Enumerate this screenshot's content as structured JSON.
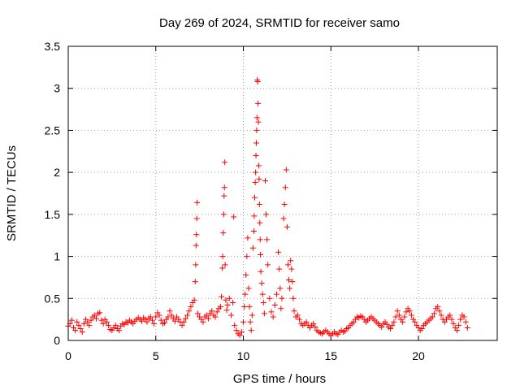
{
  "chart_data": {
    "type": "scatter",
    "title": "Day 269 of 2024, SRMTID for receiver samo",
    "xlabel": "GPS time / hours",
    "ylabel": "SRMTID / TECUs",
    "xlim": [
      0,
      24.5
    ],
    "ylim": [
      0,
      3.5
    ],
    "grid": true,
    "marker": "plus",
    "color": "#ff0000",
    "x_ticks": [
      0,
      5,
      10,
      15,
      20
    ],
    "x_tick_labels": [
      "0",
      "5",
      "10",
      "15",
      "20"
    ],
    "y_ticks": [
      0,
      0.5,
      1,
      1.5,
      2,
      2.5,
      3,
      3.5
    ],
    "y_tick_labels": [
      "0",
      "0.5",
      "1",
      "1.5",
      "2",
      "2.5",
      "3",
      "3.5"
    ],
    "series": [
      {
        "name": "SRMTID",
        "points": [
          [
            0.0,
            0.17
          ],
          [
            0.1,
            0.2
          ],
          [
            0.2,
            0.24
          ],
          [
            0.3,
            0.15
          ],
          [
            0.4,
            0.12
          ],
          [
            0.5,
            0.22
          ],
          [
            0.6,
            0.18
          ],
          [
            0.7,
            0.14
          ],
          [
            0.8,
            0.1
          ],
          [
            0.9,
            0.2
          ],
          [
            1.0,
            0.25
          ],
          [
            1.1,
            0.22
          ],
          [
            1.2,
            0.18
          ],
          [
            1.3,
            0.24
          ],
          [
            1.4,
            0.28
          ],
          [
            1.5,
            0.3
          ],
          [
            1.6,
            0.26
          ],
          [
            1.7,
            0.32
          ],
          [
            1.8,
            0.33
          ],
          [
            1.9,
            0.24
          ],
          [
            2.0,
            0.2
          ],
          [
            2.1,
            0.25
          ],
          [
            2.2,
            0.22
          ],
          [
            2.3,
            0.18
          ],
          [
            2.4,
            0.13
          ],
          [
            2.5,
            0.12
          ],
          [
            2.6,
            0.15
          ],
          [
            2.7,
            0.18
          ],
          [
            2.8,
            0.14
          ],
          [
            2.9,
            0.12
          ],
          [
            3.0,
            0.17
          ],
          [
            3.1,
            0.2
          ],
          [
            3.2,
            0.19
          ],
          [
            3.3,
            0.22
          ],
          [
            3.4,
            0.21
          ],
          [
            3.5,
            0.24
          ],
          [
            3.6,
            0.22
          ],
          [
            3.7,
            0.2
          ],
          [
            3.8,
            0.23
          ],
          [
            3.9,
            0.25
          ],
          [
            4.0,
            0.27
          ],
          [
            4.1,
            0.25
          ],
          [
            4.2,
            0.23
          ],
          [
            4.3,
            0.27
          ],
          [
            4.4,
            0.25
          ],
          [
            4.5,
            0.22
          ],
          [
            4.6,
            0.26
          ],
          [
            4.7,
            0.28
          ],
          [
            4.8,
            0.24
          ],
          [
            4.9,
            0.2
          ],
          [
            5.0,
            0.28
          ],
          [
            5.1,
            0.33
          ],
          [
            5.2,
            0.3
          ],
          [
            5.3,
            0.24
          ],
          [
            5.4,
            0.2
          ],
          [
            5.5,
            0.21
          ],
          [
            5.6,
            0.25
          ],
          [
            5.7,
            0.28
          ],
          [
            5.8,
            0.35
          ],
          [
            5.9,
            0.3
          ],
          [
            6.0,
            0.26
          ],
          [
            6.1,
            0.23
          ],
          [
            6.2,
            0.28
          ],
          [
            6.3,
            0.25
          ],
          [
            6.4,
            0.22
          ],
          [
            6.5,
            0.18
          ],
          [
            6.6,
            0.22
          ],
          [
            6.7,
            0.26
          ],
          [
            6.8,
            0.3
          ],
          [
            6.9,
            0.35
          ],
          [
            7.0,
            0.4
          ],
          [
            7.1,
            0.45
          ],
          [
            7.2,
            0.48
          ],
          [
            7.25,
            0.7
          ],
          [
            7.28,
            0.9
          ],
          [
            7.3,
            1.13
          ],
          [
            7.32,
            1.26
          ],
          [
            7.34,
            1.45
          ],
          [
            7.36,
            1.64
          ],
          [
            7.4,
            0.32
          ],
          [
            7.5,
            0.28
          ],
          [
            7.6,
            0.25
          ],
          [
            7.7,
            0.22
          ],
          [
            7.8,
            0.28
          ],
          [
            7.9,
            0.3
          ],
          [
            8.0,
            0.26
          ],
          [
            8.1,
            0.32
          ],
          [
            8.2,
            0.35
          ],
          [
            8.3,
            0.3
          ],
          [
            8.4,
            0.28
          ],
          [
            8.5,
            0.34
          ],
          [
            8.6,
            0.38
          ],
          [
            8.7,
            0.4
          ],
          [
            8.75,
            0.52
          ],
          [
            8.8,
            0.86
          ],
          [
            8.82,
            1.0
          ],
          [
            8.85,
            1.28
          ],
          [
            8.88,
            1.5
          ],
          [
            8.9,
            1.72
          ],
          [
            8.92,
            1.82
          ],
          [
            8.94,
            2.12
          ],
          [
            8.96,
            0.9
          ],
          [
            9.0,
            0.48
          ],
          [
            9.05,
            0.36
          ],
          [
            9.1,
            0.42
          ],
          [
            9.2,
            0.5
          ],
          [
            9.3,
            0.3
          ],
          [
            9.4,
            0.45
          ],
          [
            9.45,
            1.47
          ],
          [
            9.5,
            0.18
          ],
          [
            9.6,
            0.12
          ],
          [
            9.7,
            0.08
          ],
          [
            9.8,
            0.06
          ],
          [
            9.9,
            0.1
          ],
          [
            10.0,
            0.22
          ],
          [
            10.05,
            0.4
          ],
          [
            10.1,
            0.55
          ],
          [
            10.15,
            0.78
          ],
          [
            10.2,
            1.0
          ],
          [
            10.25,
            1.22
          ],
          [
            10.3,
            0.62
          ],
          [
            10.35,
            0.4
          ],
          [
            10.4,
            0.22
          ],
          [
            10.45,
            0.12
          ],
          [
            10.5,
            0.3
          ],
          [
            10.55,
            1.1
          ],
          [
            10.6,
            1.3
          ],
          [
            10.62,
            1.48
          ],
          [
            10.65,
            1.7
          ],
          [
            10.68,
            1.88
          ],
          [
            10.7,
            2.0
          ],
          [
            10.72,
            2.2
          ],
          [
            10.74,
            2.35
          ],
          [
            10.76,
            2.5
          ],
          [
            10.78,
            2.65
          ],
          [
            10.8,
            3.1
          ],
          [
            10.82,
            3.08
          ],
          [
            10.84,
            2.82
          ],
          [
            10.86,
            2.6
          ],
          [
            10.88,
            2.08
          ],
          [
            10.9,
            1.92
          ],
          [
            10.92,
            1.62
          ],
          [
            10.94,
            1.4
          ],
          [
            10.96,
            1.2
          ],
          [
            10.98,
            1.02
          ],
          [
            11.0,
            0.82
          ],
          [
            11.05,
            0.68
          ],
          [
            11.1,
            0.55
          ],
          [
            11.15,
            0.45
          ],
          [
            11.2,
            0.32
          ],
          [
            11.25,
            1.9
          ],
          [
            11.3,
            1.5
          ],
          [
            11.35,
            1.2
          ],
          [
            11.4,
            0.9
          ],
          [
            11.5,
            0.5
          ],
          [
            11.6,
            0.34
          ],
          [
            11.7,
            0.28
          ],
          [
            11.8,
            0.42
          ],
          [
            11.9,
            0.55
          ],
          [
            12.0,
            1.05
          ],
          [
            12.05,
            0.85
          ],
          [
            12.1,
            0.62
          ],
          [
            12.15,
            0.38
          ],
          [
            12.2,
            0.5
          ],
          [
            12.3,
            1.45
          ],
          [
            12.35,
            1.62
          ],
          [
            12.4,
            1.82
          ],
          [
            12.45,
            2.03
          ],
          [
            12.5,
            1.35
          ],
          [
            12.55,
            0.9
          ],
          [
            12.6,
            0.72
          ],
          [
            12.65,
            0.62
          ],
          [
            12.7,
            0.95
          ],
          [
            12.75,
            0.85
          ],
          [
            12.8,
            0.7
          ],
          [
            12.85,
            0.5
          ],
          [
            12.9,
            0.35
          ],
          [
            13.0,
            0.28
          ],
          [
            13.1,
            0.3
          ],
          [
            13.2,
            0.25
          ],
          [
            13.3,
            0.2
          ],
          [
            13.4,
            0.18
          ],
          [
            13.5,
            0.2
          ],
          [
            13.6,
            0.22
          ],
          [
            13.7,
            0.18
          ],
          [
            13.8,
            0.15
          ],
          [
            13.9,
            0.18
          ],
          [
            14.0,
            0.2
          ],
          [
            14.1,
            0.16
          ],
          [
            14.2,
            0.12
          ],
          [
            14.3,
            0.1
          ],
          [
            14.4,
            0.09
          ],
          [
            14.5,
            0.08
          ],
          [
            14.6,
            0.1
          ],
          [
            14.7,
            0.12
          ],
          [
            14.8,
            0.1
          ],
          [
            14.9,
            0.08
          ],
          [
            15.0,
            0.06
          ],
          [
            15.1,
            0.08
          ],
          [
            15.2,
            0.1
          ],
          [
            15.3,
            0.08
          ],
          [
            15.4,
            0.07
          ],
          [
            15.5,
            0.1
          ],
          [
            15.6,
            0.12
          ],
          [
            15.7,
            0.1
          ],
          [
            15.8,
            0.11
          ],
          [
            15.9,
            0.14
          ],
          [
            16.0,
            0.15
          ],
          [
            16.1,
            0.18
          ],
          [
            16.2,
            0.2
          ],
          [
            16.3,
            0.22
          ],
          [
            16.4,
            0.25
          ],
          [
            16.5,
            0.28
          ],
          [
            16.6,
            0.27
          ],
          [
            16.7,
            0.29
          ],
          [
            16.8,
            0.28
          ],
          [
            16.9,
            0.25
          ],
          [
            17.0,
            0.22
          ],
          [
            17.1,
            0.24
          ],
          [
            17.2,
            0.26
          ],
          [
            17.3,
            0.28
          ],
          [
            17.4,
            0.26
          ],
          [
            17.5,
            0.24
          ],
          [
            17.6,
            0.22
          ],
          [
            17.7,
            0.2
          ],
          [
            17.8,
            0.18
          ],
          [
            17.9,
            0.16
          ],
          [
            18.0,
            0.2
          ],
          [
            18.1,
            0.22
          ],
          [
            18.2,
            0.19
          ],
          [
            18.3,
            0.16
          ],
          [
            18.4,
            0.14
          ],
          [
            18.5,
            0.18
          ],
          [
            18.6,
            0.22
          ],
          [
            18.7,
            0.28
          ],
          [
            18.8,
            0.35
          ],
          [
            18.9,
            0.3
          ],
          [
            19.0,
            0.25
          ],
          [
            19.1,
            0.22
          ],
          [
            19.2,
            0.28
          ],
          [
            19.3,
            0.34
          ],
          [
            19.4,
            0.38
          ],
          [
            19.5,
            0.35
          ],
          [
            19.6,
            0.3
          ],
          [
            19.7,
            0.25
          ],
          [
            19.8,
            0.22
          ],
          [
            19.9,
            0.18
          ],
          [
            20.0,
            0.15
          ],
          [
            20.1,
            0.12
          ],
          [
            20.2,
            0.14
          ],
          [
            20.3,
            0.18
          ],
          [
            20.4,
            0.2
          ],
          [
            20.5,
            0.22
          ],
          [
            20.6,
            0.24
          ],
          [
            20.7,
            0.26
          ],
          [
            20.8,
            0.28
          ],
          [
            20.9,
            0.32
          ],
          [
            21.0,
            0.38
          ],
          [
            21.1,
            0.4
          ],
          [
            21.2,
            0.35
          ],
          [
            21.3,
            0.3
          ],
          [
            21.4,
            0.25
          ],
          [
            21.5,
            0.22
          ],
          [
            21.6,
            0.25
          ],
          [
            21.7,
            0.28
          ],
          [
            21.8,
            0.3
          ],
          [
            21.9,
            0.25
          ],
          [
            22.0,
            0.2
          ],
          [
            22.1,
            0.15
          ],
          [
            22.2,
            0.12
          ],
          [
            22.3,
            0.18
          ],
          [
            22.4,
            0.25
          ],
          [
            22.5,
            0.3
          ],
          [
            22.6,
            0.28
          ],
          [
            22.7,
            0.22
          ],
          [
            22.8,
            0.15
          ]
        ]
      }
    ]
  }
}
